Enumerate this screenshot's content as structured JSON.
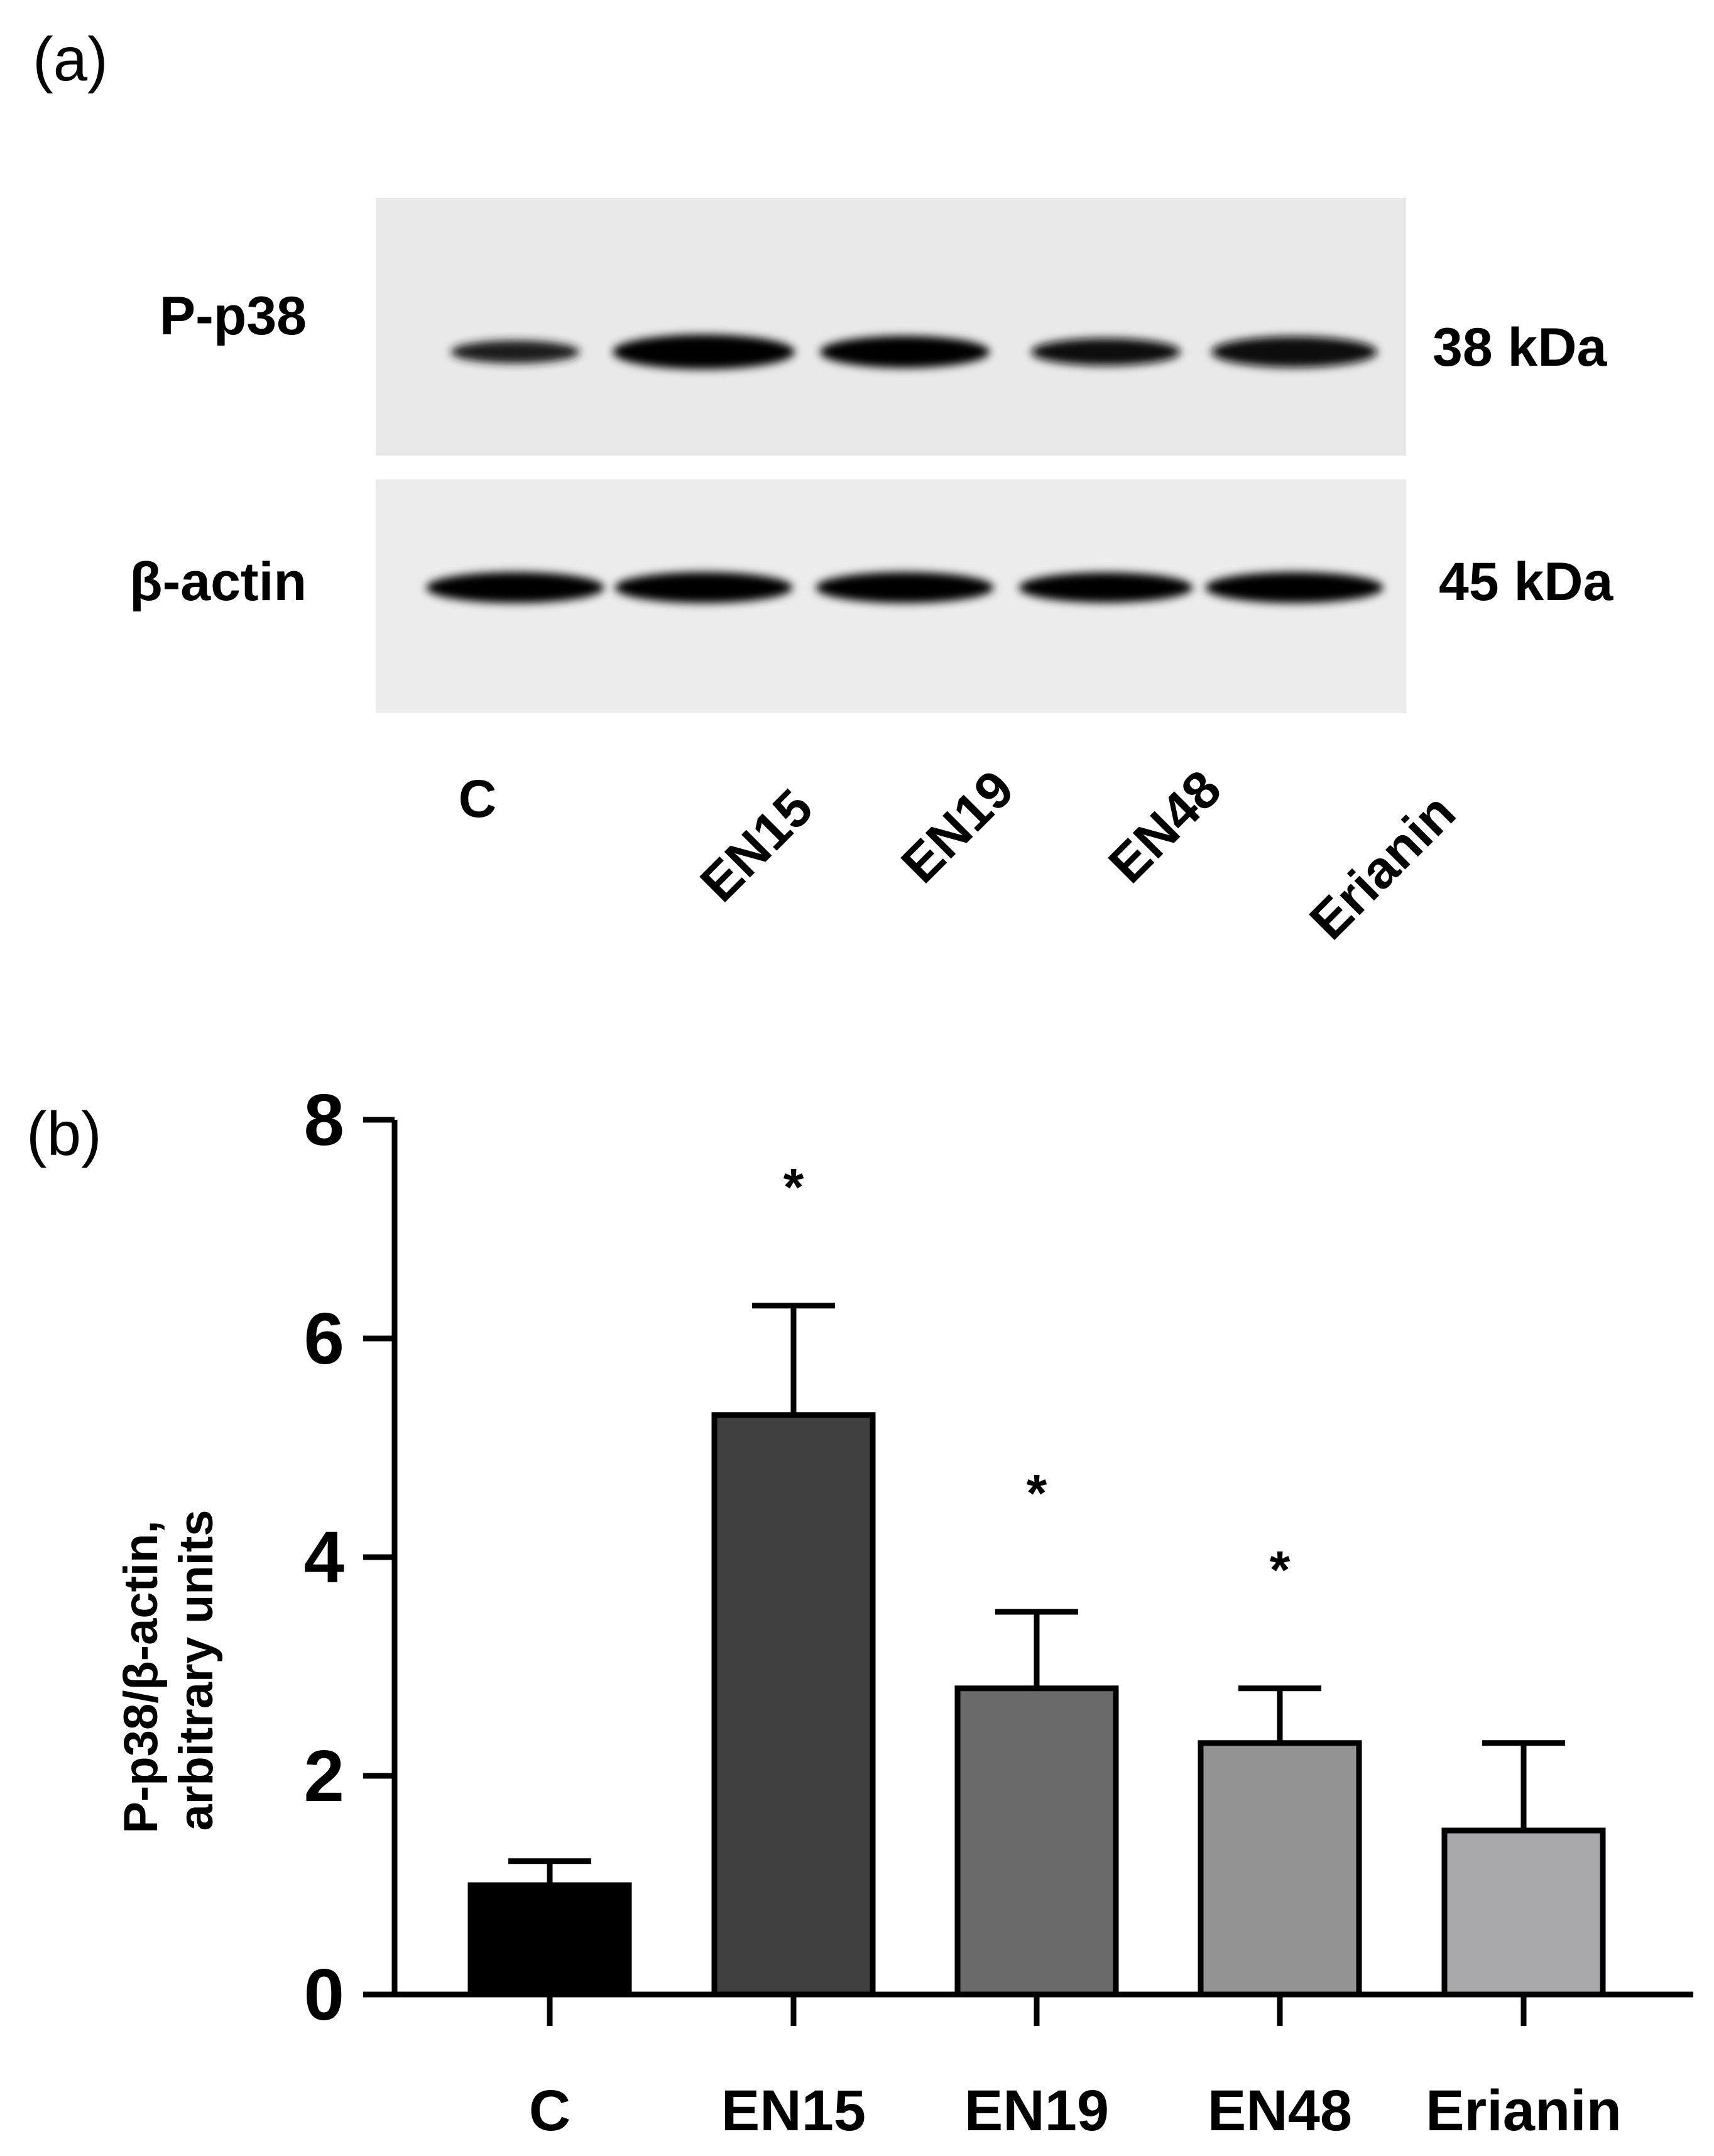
{
  "panel_a": {
    "label": "(a)",
    "rows": [
      {
        "protein": "P-p38",
        "mw": "38 kDa",
        "band_intensity": [
          0.35,
          1.0,
          0.85,
          0.6,
          0.8
        ]
      },
      {
        "protein": "β-actin",
        "mw": "45 kDa",
        "band_intensity": [
          0.95,
          0.95,
          0.95,
          0.9,
          0.95
        ]
      }
    ],
    "lanes": [
      "C",
      "EN15",
      "EN19",
      "EN48",
      "Erianin"
    ]
  },
  "panel_b": {
    "label": "(b)"
  },
  "chart_data": {
    "type": "bar",
    "categories": [
      "C",
      "EN15",
      "EN19",
      "EN48",
      "Erianin"
    ],
    "values": [
      1.0,
      5.3,
      2.8,
      2.3,
      1.5
    ],
    "errors": [
      0.22,
      1.0,
      0.7,
      0.5,
      0.8
    ],
    "significance": [
      "",
      "*",
      "*",
      "*",
      ""
    ],
    "colors": [
      "#000000",
      "#404040",
      "#6a6a6a",
      "#939393",
      "#a9a9ad"
    ],
    "ylabel": [
      "P-p38/β-actin,",
      "arbitrary units"
    ],
    "xlabel": "",
    "ylim": [
      0,
      8
    ],
    "yticks": [
      0,
      2,
      4,
      6,
      8
    ],
    "grid": false,
    "legend": "none"
  }
}
